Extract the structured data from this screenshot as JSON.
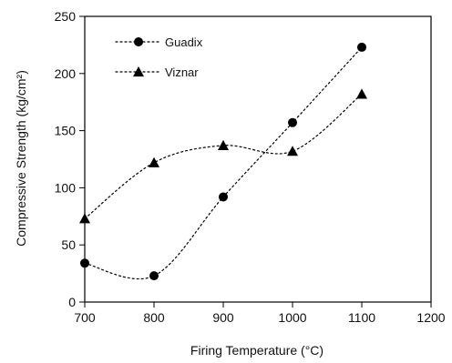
{
  "chart_data": {
    "type": "line",
    "xlabel": "Firing Temperature (°C)",
    "ylabel": "Compressive Strength (kg/cm²)",
    "xlim": [
      700,
      1200
    ],
    "ylim": [
      0,
      250
    ],
    "x_ticks": [
      700,
      800,
      900,
      1000,
      1100,
      1200
    ],
    "y_ticks": [
      0,
      50,
      100,
      150,
      200,
      250
    ],
    "grid": false,
    "legend_position": "top-left",
    "series": [
      {
        "name": "Guadix",
        "marker": "circle",
        "line_style": "dotted",
        "color": "#000000",
        "x": [
          700,
          800,
          900,
          1000,
          1100
        ],
        "y": [
          34,
          23,
          92,
          157,
          223
        ]
      },
      {
        "name": "Viznar",
        "marker": "triangle",
        "line_style": "dotted",
        "color": "#000000",
        "x": [
          700,
          800,
          900,
          1000,
          1100
        ],
        "y": [
          73,
          122,
          137,
          132,
          182
        ]
      }
    ]
  }
}
